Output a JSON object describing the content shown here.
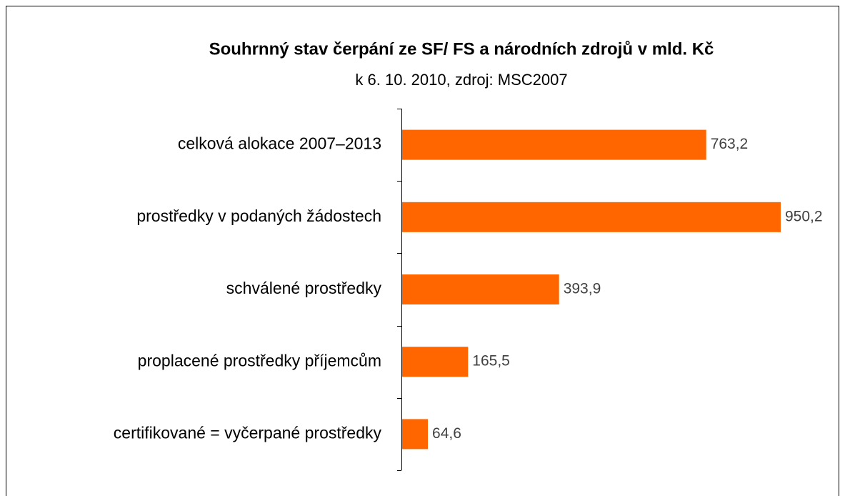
{
  "chart_data": {
    "type": "bar",
    "orientation": "horizontal",
    "title": "Souhrnný stav čerpání ze SF/ FS a národních zdrojů v mld. Kč",
    "subtitle": "k 6. 10. 2010, zdroj: MSC2007",
    "categories": [
      "celková alokace 2007–2013",
      "prostředky v podaných žádostech",
      "schválené prostředky",
      "proplacené prostředky příjemcům",
      "certifikované = vyčerpané prostředky"
    ],
    "values": [
      763.2,
      950.2,
      393.9,
      165.5,
      64.6
    ],
    "value_labels": [
      "763,2",
      "950,2",
      "393,9",
      "165,5",
      "64,6"
    ],
    "color": "#ff6600"
  }
}
